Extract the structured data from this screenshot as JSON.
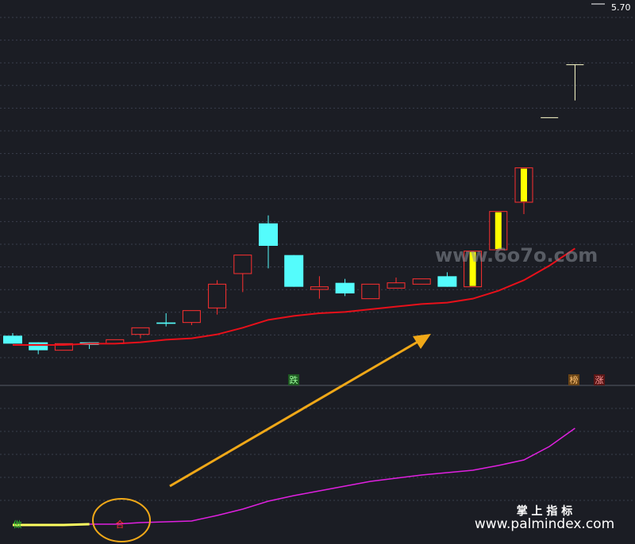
{
  "chart_data": [
    {
      "type": "candlestick",
      "ylim": [
        2.82,
        5.73
      ],
      "price_label": {
        "value": 5.7,
        "label": "5.70"
      },
      "open": [
        3.19,
        3.14,
        3.08,
        3.14,
        3.13,
        3.2,
        3.29,
        3.29,
        3.4,
        3.66,
        4.04,
        3.8,
        3.54,
        3.59,
        3.47,
        3.55,
        3.58,
        3.64,
        3.56,
        3.84,
        4.2,
        4.84,
        5.24
      ],
      "high": [
        3.21,
        3.14,
        3.13,
        3.14,
        3.16,
        3.25,
        3.36,
        3.38,
        3.61,
        3.8,
        4.1,
        3.8,
        3.64,
        3.62,
        3.58,
        3.63,
        3.62,
        3.67,
        3.83,
        4.13,
        4.46,
        4.84,
        5.24
      ],
      "low": [
        3.13,
        3.05,
        3.08,
        3.09,
        3.13,
        3.17,
        3.26,
        3.27,
        3.35,
        3.52,
        3.7,
        3.56,
        3.47,
        3.49,
        3.47,
        3.55,
        3.58,
        3.56,
        3.56,
        3.84,
        4.11,
        4.84,
        4.97
      ],
      "close": [
        3.13,
        3.08,
        3.13,
        3.12,
        3.16,
        3.25,
        3.28,
        3.38,
        3.58,
        3.8,
        3.87,
        3.56,
        3.56,
        3.51,
        3.58,
        3.59,
        3.62,
        3.56,
        3.83,
        4.13,
        4.46,
        4.84,
        5.24
      ],
      "colors": [
        "#54fcfc",
        "#54fcfc",
        "#ff3030",
        "#54fcfc",
        "#ff3030",
        "#ff3030",
        "#54fcfc",
        "#ff3030",
        "#ff3030",
        "#ff3030",
        "#54fcfc",
        "#54fcfc",
        "#ff3030",
        "#54fcfc",
        "#ff3030",
        "#ff3030",
        "#ff3030",
        "#54fcfc",
        "#ffff00",
        "#ffff00",
        "#ffff00",
        "#ffffcc",
        "#ffffcc"
      ],
      "ma": {
        "color": "#e8101a",
        "values": [
          3.12,
          3.12,
          3.12,
          3.13,
          3.13,
          3.14,
          3.16,
          3.17,
          3.2,
          3.25,
          3.31,
          3.34,
          3.36,
          3.37,
          3.39,
          3.41,
          3.43,
          3.44,
          3.47,
          3.53,
          3.61,
          3.72,
          3.85
        ]
      },
      "signals": [
        "跌",
        "榜",
        "涨"
      ]
    },
    {
      "type": "line",
      "ylim": [
        0,
        100
      ],
      "series": [
        {
          "color": "#e020e0",
          "values": [
            12,
            12,
            12,
            12.5,
            12.5,
            13.5,
            14,
            14.5,
            18,
            22,
            27,
            30.5,
            33.5,
            36.5,
            39.5,
            41.5,
            43.5,
            45,
            46.5,
            49.5,
            53,
            61.5,
            73
          ]
        },
        {
          "color": "#ffff60",
          "values": [
            12,
            12,
            12,
            12.5,
            null,
            null,
            null,
            null,
            null,
            null,
            null,
            null,
            null,
            null,
            null,
            null,
            null,
            null,
            null,
            null,
            null,
            null,
            null
          ]
        }
      ],
      "signals": [
        "做",
        "合"
      ]
    }
  ],
  "watermarks": [
    "www.6o7o.com",
    "掌 上 指 标",
    "www.palmindex.com"
  ]
}
